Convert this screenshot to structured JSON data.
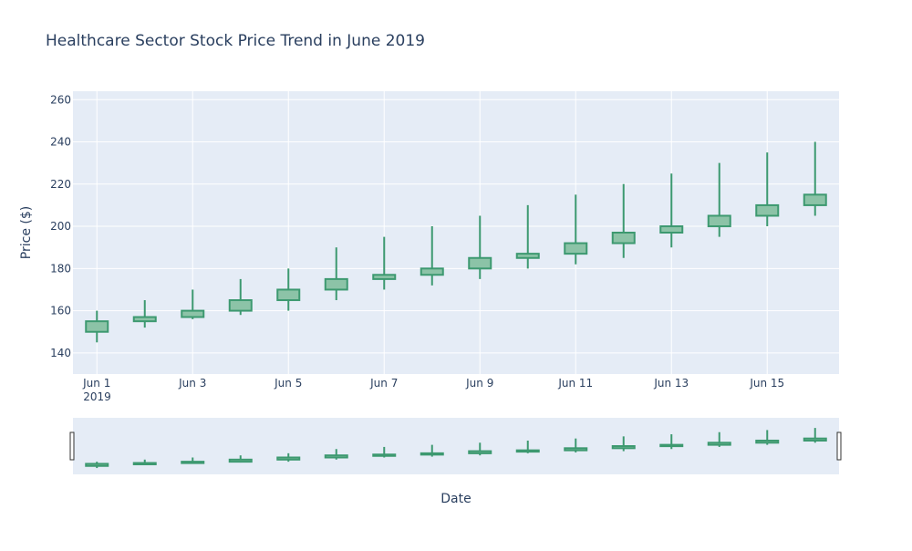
{
  "chart_data": {
    "type": "candlestick",
    "title": "Healthcare Sector Stock Price Trend in June 2019",
    "xlabel": "Date",
    "ylabel": "Price ($)",
    "ylim": [
      130,
      264
    ],
    "yticks": [
      140,
      160,
      180,
      200,
      220,
      240,
      260
    ],
    "xticks": [
      {
        "label": "Jun 1",
        "sublabel": "2019",
        "day": 1
      },
      {
        "label": "Jun 3",
        "sublabel": "",
        "day": 3
      },
      {
        "label": "Jun 5",
        "sublabel": "",
        "day": 5
      },
      {
        "label": "Jun 7",
        "sublabel": "",
        "day": 7
      },
      {
        "label": "Jun 9",
        "sublabel": "",
        "day": 9
      },
      {
        "label": "Jun 11",
        "sublabel": "",
        "day": 11
      },
      {
        "label": "Jun 13",
        "sublabel": "",
        "day": 13
      },
      {
        "label": "Jun 15",
        "sublabel": "",
        "day": 15
      }
    ],
    "x": [
      "2019-06-01",
      "2019-06-02",
      "2019-06-03",
      "2019-06-04",
      "2019-06-05",
      "2019-06-06",
      "2019-06-07",
      "2019-06-08",
      "2019-06-09",
      "2019-06-10",
      "2019-06-11",
      "2019-06-12",
      "2019-06-13",
      "2019-06-14",
      "2019-06-15",
      "2019-06-16"
    ],
    "open": [
      150,
      155,
      157,
      160,
      165,
      170,
      175,
      177,
      180,
      185,
      187,
      192,
      197,
      200,
      205,
      210
    ],
    "high": [
      160,
      165,
      170,
      175,
      180,
      190,
      195,
      200,
      205,
      210,
      215,
      220,
      225,
      230,
      235,
      240
    ],
    "low": [
      145,
      152,
      156,
      158,
      160,
      165,
      170,
      172,
      175,
      180,
      182,
      185,
      190,
      195,
      200,
      205
    ],
    "close": [
      155,
      157,
      160,
      165,
      170,
      175,
      177,
      180,
      185,
      187,
      192,
      197,
      200,
      205,
      210,
      215
    ],
    "grid": true,
    "rangeslider": true,
    "colors": {
      "increasing_line": "#3d9970",
      "increasing_fill": "#8cc3a7",
      "plot_bg": "#e5ecf6",
      "grid": "#ffffff",
      "text": "#2a3f5f"
    }
  }
}
